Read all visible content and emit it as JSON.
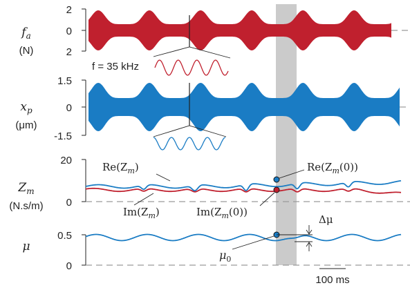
{
  "colors": {
    "red": "#c0202e",
    "blue": "#1a7cc4",
    "shade": "#cbcbcb",
    "axis": "#222222",
    "dash": "#9a9a9a"
  },
  "panels": {
    "fa": {
      "symbol": "f",
      "subscript": "a",
      "unit": "(N)",
      "ticks": [
        "2",
        "0",
        "2"
      ]
    },
    "xp": {
      "symbol": "x",
      "subscript": "p",
      "unit": "(μm)",
      "ticks": [
        "1.5",
        "0",
        "-1.5"
      ]
    },
    "zm": {
      "symbol": "Z",
      "subscript": "m",
      "unit": "(N.s/m)",
      "ticks": [
        "20",
        "0"
      ]
    },
    "mu": {
      "symbol": "μ",
      "ticks": [
        "0.5",
        "0"
      ]
    }
  },
  "annotations": {
    "freq": "f = 35 kHz",
    "re_zm": "Re(Z",
    "re_zm_sub": "m",
    "re_zm_close": ")",
    "im_zm": "Im(Z",
    "im_zm_sub": "m",
    "im_zm_close": ")",
    "re_zm0": "Re(Z",
    "re_zm0_sub": "m",
    "re_zm0_close": "(0))",
    "im_zm0": "Im(Z",
    "im_zm0_sub": "m",
    "im_zm0_close": "(0))",
    "delta_mu": "Δμ",
    "mu0": "μ",
    "mu0_sub": "0",
    "scalebar": "100 ms"
  }
}
